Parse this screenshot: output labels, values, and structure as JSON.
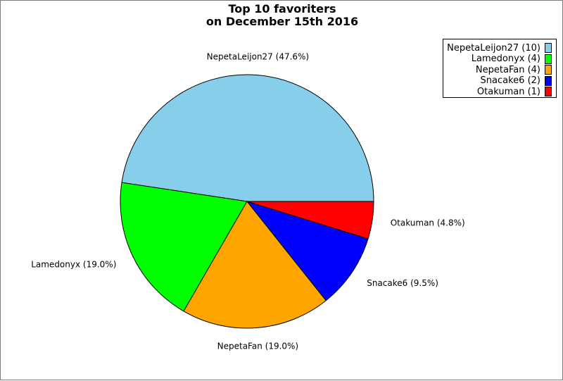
{
  "chart_data": {
    "type": "pie",
    "title_lines": [
      "Top 10 favoriters",
      "on December 15th 2016"
    ],
    "slices": [
      {
        "name": "NepetaLeijon27",
        "count": 10,
        "percent": 47.6,
        "color": "#87ceeb",
        "label": "NepetaLeijon27 (47.6%)",
        "legend": "NepetaLeijon27 (10)"
      },
      {
        "name": "Lamedonyx",
        "count": 4,
        "percent": 19.0,
        "color": "#00ff00",
        "label": "Lamedonyx (19.0%)",
        "legend": "Lamedonyx (4)"
      },
      {
        "name": "NepetaFan",
        "count": 4,
        "percent": 19.0,
        "color": "#ffa500",
        "label": "NepetaFan (19.0%)",
        "legend": "NepetaFan (4)"
      },
      {
        "name": "Snacake6",
        "count": 2,
        "percent": 9.5,
        "color": "#0000ff",
        "label": "Snacake6 (9.5%)",
        "legend": "Snacake6 (2)"
      },
      {
        "name": "Otakuman",
        "count": 1,
        "percent": 4.8,
        "color": "#ff0000",
        "label": "Otakuman (4.8%)",
        "legend": "Otakuman (1)"
      }
    ],
    "legend_position": "top-right"
  }
}
